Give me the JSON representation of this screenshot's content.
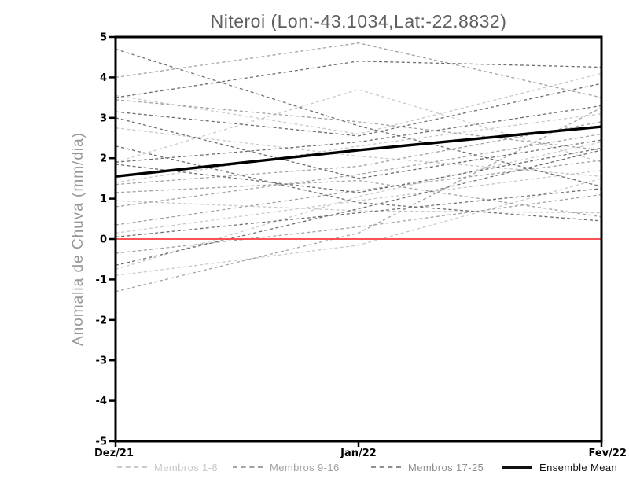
{
  "chart_data": {
    "type": "line",
    "title": "Niteroi (Lon:-43.1034,Lat:-22.8832)",
    "ylabel": "Anomalia de Chuva (mm/dia)",
    "xlabel": "",
    "categories": [
      "Dez/21",
      "Jan/22",
      "Fev/22"
    ],
    "ylim": [
      -5,
      5
    ],
    "ytick_step": 1,
    "ytick_labels": [
      "5",
      "4",
      "3",
      "2",
      "1",
      "0",
      "-1",
      "-2",
      "-3",
      "-4",
      "-5"
    ],
    "grid": false,
    "legend_position": "bottom",
    "zero_line": {
      "value": 0,
      "color": "#fa3c3c"
    },
    "groups": [
      {
        "name": "Membros 1-8",
        "color": "#c9c9c9",
        "style": "dashed",
        "series": [
          [
            1.9,
            3.7,
            1.9
          ],
          [
            -0.75,
            1.05,
            2.4
          ],
          [
            -0.9,
            -0.15,
            1.5
          ],
          [
            0.15,
            0.95,
            1.7
          ],
          [
            2.75,
            2.05,
            1.55
          ],
          [
            3.55,
            2.6,
            4.1
          ],
          [
            1.4,
            2.3,
            3.1
          ],
          [
            0.95,
            0.7,
            0.65
          ]
        ]
      },
      {
        "name": "Membros 9-16",
        "color": "#a3a3a3",
        "style": "dashed",
        "series": [
          [
            4.0,
            4.85,
            3.5
          ],
          [
            3.45,
            2.9,
            2.2
          ],
          [
            1.35,
            1.8,
            2.9
          ],
          [
            1.15,
            1.45,
            0.55
          ],
          [
            0.8,
            1.6,
            2.6
          ],
          [
            0.35,
            1.2,
            1.95
          ],
          [
            -0.35,
            0.3,
            1.1
          ],
          [
            -1.3,
            0.15,
            3.25
          ]
        ]
      },
      {
        "name": "Membros 17-25",
        "color": "#6e6e6e",
        "style": "dashed",
        "series": [
          [
            4.7,
            2.8,
            1.3
          ],
          [
            3.5,
            4.4,
            4.25
          ],
          [
            3.15,
            2.55,
            3.85
          ],
          [
            3.0,
            1.5,
            2.45
          ],
          [
            2.3,
            0.9,
            0.45
          ],
          [
            1.9,
            2.4,
            3.3
          ],
          [
            1.85,
            1.15,
            2.25
          ],
          [
            0.05,
            0.65,
            1.25
          ],
          [
            -0.65,
            0.75,
            2.2
          ]
        ]
      }
    ],
    "ensemble_mean": {
      "name": "Ensemble Mean",
      "color": "#000000",
      "style": "solid",
      "values": [
        1.55,
        2.2,
        2.78
      ]
    },
    "legend": [
      {
        "label": "Membros 1-8",
        "color": "#c9c9c9",
        "style": "dashed"
      },
      {
        "label": "Membros 9-16",
        "color": "#a3a3a3",
        "style": "dashed"
      },
      {
        "label": "Membros 17-25",
        "color": "#8f8f8f",
        "style": "dashed"
      },
      {
        "label": "Ensemble Mean",
        "color": "#111111",
        "style": "solid"
      }
    ]
  }
}
